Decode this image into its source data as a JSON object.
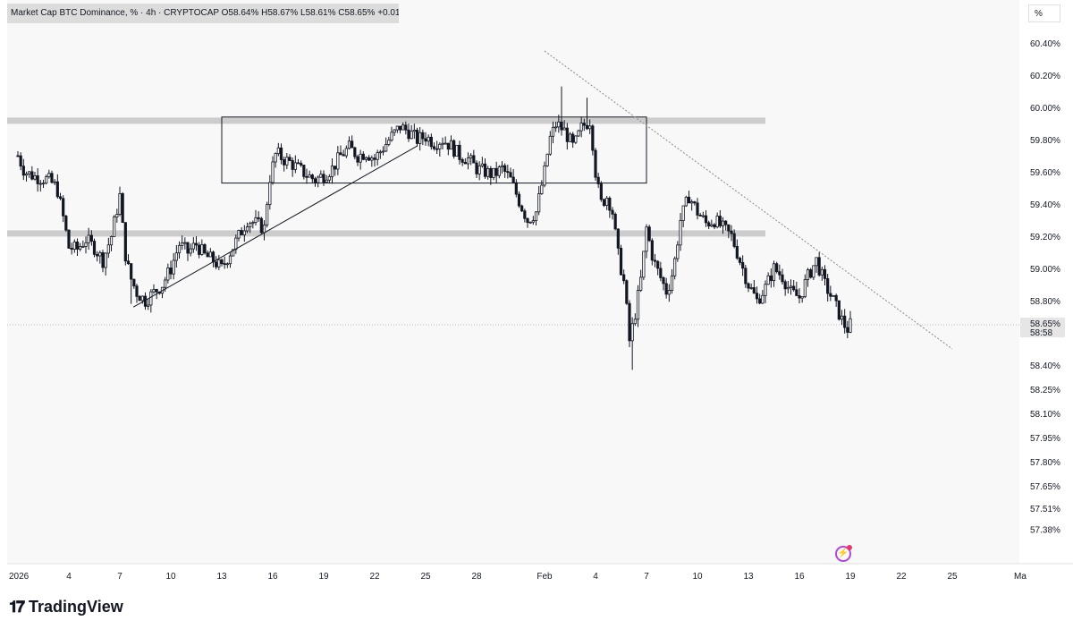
{
  "header": {
    "legend": "Market Cap BTC Dominance, % · 4h · CRYPTOCAP  O58.64%  H58.67%  L58.61%  C58.65%  +0.01 (+0.02%)",
    "unit": "%"
  },
  "price_scale": {
    "current_price": "58.65%",
    "countdown": "58:58"
  },
  "brand": {
    "name": "TradingView"
  },
  "colors": {
    "candle": "#131722",
    "zone": "#cccccc",
    "background": "#f8f8f8"
  },
  "chart_data": {
    "type": "candlestick",
    "title": "",
    "interval": "4h",
    "ylim": [
      57.3,
      60.55
    ],
    "y_ticks": [
      {
        "label": "60.40%",
        "value": 60.4
      },
      {
        "label": "60.20%",
        "value": 60.2
      },
      {
        "label": "60.00%",
        "value": 60.0
      },
      {
        "label": "59.80%",
        "value": 59.8
      },
      {
        "label": "59.60%",
        "value": 59.6
      },
      {
        "label": "59.40%",
        "value": 59.4
      },
      {
        "label": "59.20%",
        "value": 59.2
      },
      {
        "label": "59.00%",
        "value": 59.0
      },
      {
        "label": "58.80%",
        "value": 58.8
      },
      {
        "label": "58.40%",
        "value": 58.4
      },
      {
        "label": "58.25%",
        "value": 58.25
      },
      {
        "label": "58.10%",
        "value": 58.1
      },
      {
        "label": "57.95%",
        "value": 57.95
      },
      {
        "label": "57.80%",
        "value": 57.8
      },
      {
        "label": "57.65%",
        "value": 57.65
      },
      {
        "label": "57.51%",
        "value": 57.51
      },
      {
        "label": "57.38%",
        "value": 57.38
      }
    ],
    "x_ticks": [
      {
        "label": "2026",
        "day": 1
      },
      {
        "label": "4",
        "day": 4
      },
      {
        "label": "7",
        "day": 7
      },
      {
        "label": "10",
        "day": 10
      },
      {
        "label": "13",
        "day": 13
      },
      {
        "label": "16",
        "day": 16
      },
      {
        "label": "19",
        "day": 19
      },
      {
        "label": "22",
        "day": 22
      },
      {
        "label": "25",
        "day": 25
      },
      {
        "label": "28",
        "day": 28
      },
      {
        "label": "Feb",
        "day": 32
      },
      {
        "label": "4",
        "day": 35
      },
      {
        "label": "7",
        "day": 38
      },
      {
        "label": "10",
        "day": 41
      },
      {
        "label": "13",
        "day": 44
      },
      {
        "label": "16",
        "day": 47
      },
      {
        "label": "19",
        "day": 50
      },
      {
        "label": "22",
        "day": 53
      },
      {
        "label": "25",
        "day": 56
      },
      {
        "label": "Ma",
        "day": 60
      }
    ],
    "close_path": [
      [
        1.0,
        59.7
      ],
      [
        1.4,
        59.6
      ],
      [
        2.0,
        59.57
      ],
      [
        2.8,
        59.55
      ],
      [
        3.3,
        59.5
      ],
      [
        3.7,
        59.3
      ],
      [
        4.0,
        59.13
      ],
      [
        4.5,
        59.12
      ],
      [
        5.0,
        59.18
      ],
      [
        5.5,
        59.13
      ],
      [
        6.0,
        59.05
      ],
      [
        6.5,
        59.2
      ],
      [
        7.0,
        59.45
      ],
      [
        7.3,
        59.1
      ],
      [
        7.6,
        58.95
      ],
      [
        8.0,
        58.85
      ],
      [
        8.5,
        58.8
      ],
      [
        9.0,
        58.85
      ],
      [
        9.5,
        58.9
      ],
      [
        10.0,
        59.0
      ],
      [
        10.5,
        59.15
      ],
      [
        11.0,
        59.1
      ],
      [
        11.5,
        59.15
      ],
      [
        12.0,
        59.08
      ],
      [
        12.5,
        59.05
      ],
      [
        13.0,
        59.0
      ],
      [
        13.5,
        59.1
      ],
      [
        14.0,
        59.2
      ],
      [
        14.5,
        59.3
      ],
      [
        15.0,
        59.28
      ],
      [
        15.5,
        59.25
      ],
      [
        15.8,
        59.55
      ],
      [
        16.2,
        59.72
      ],
      [
        16.6,
        59.68
      ],
      [
        17.0,
        59.66
      ],
      [
        17.5,
        59.62
      ],
      [
        18.0,
        59.58
      ],
      [
        18.5,
        59.55
      ],
      [
        19.0,
        59.58
      ],
      [
        19.5,
        59.62
      ],
      [
        20.0,
        59.7
      ],
      [
        20.5,
        59.75
      ],
      [
        21.0,
        59.7
      ],
      [
        21.5,
        59.72
      ],
      [
        22.0,
        59.68
      ],
      [
        22.5,
        59.75
      ],
      [
        23.0,
        59.82
      ],
      [
        23.5,
        59.88
      ],
      [
        24.0,
        59.85
      ],
      [
        24.5,
        59.8
      ],
      [
        25.0,
        59.82
      ],
      [
        25.5,
        59.78
      ],
      [
        26.0,
        59.8
      ],
      [
        26.5,
        59.76
      ],
      [
        27.0,
        59.7
      ],
      [
        27.5,
        59.68
      ],
      [
        28.0,
        59.62
      ],
      [
        28.5,
        59.6
      ],
      [
        29.0,
        59.58
      ],
      [
        29.5,
        59.62
      ],
      [
        30.0,
        59.55
      ],
      [
        30.5,
        59.42
      ],
      [
        31.0,
        59.3
      ],
      [
        31.5,
        59.35
      ],
      [
        32.0,
        59.6
      ],
      [
        32.3,
        59.8
      ],
      [
        32.7,
        59.9
      ],
      [
        33.2,
        59.85
      ],
      [
        33.7,
        59.75
      ],
      [
        34.2,
        59.88
      ],
      [
        34.7,
        59.92
      ],
      [
        35.0,
        59.6
      ],
      [
        35.3,
        59.4
      ],
      [
        35.7,
        59.45
      ],
      [
        36.0,
        59.35
      ],
      [
        36.3,
        59.1
      ],
      [
        36.7,
        58.9
      ],
      [
        37.0,
        58.55
      ],
      [
        37.3,
        58.7
      ],
      [
        37.7,
        58.95
      ],
      [
        38.0,
        59.25
      ],
      [
        38.4,
        59.05
      ],
      [
        38.8,
        58.95
      ],
      [
        39.2,
        58.85
      ],
      [
        39.6,
        59.0
      ],
      [
        40.0,
        59.3
      ],
      [
        40.5,
        59.45
      ],
      [
        41.0,
        59.35
      ],
      [
        41.5,
        59.28
      ],
      [
        42.0,
        59.3
      ],
      [
        42.5,
        59.25
      ],
      [
        43.0,
        59.2
      ],
      [
        43.5,
        59.05
      ],
      [
        44.0,
        58.9
      ],
      [
        44.5,
        58.8
      ],
      [
        45.0,
        58.88
      ],
      [
        45.5,
        59.0
      ],
      [
        46.0,
        58.95
      ],
      [
        46.5,
        58.85
      ],
      [
        47.0,
        58.82
      ],
      [
        47.5,
        58.95
      ],
      [
        48.0,
        59.05
      ],
      [
        48.5,
        58.9
      ],
      [
        49.0,
        58.8
      ],
      [
        49.5,
        58.68
      ],
      [
        49.8,
        58.62
      ],
      [
        50.0,
        58.65
      ]
    ],
    "extremes": [
      {
        "day": 7.7,
        "low": 58.78
      },
      {
        "day": 33.0,
        "high": 60.13
      },
      {
        "day": 34.5,
        "high": 60.06
      },
      {
        "day": 37.2,
        "low": 58.37
      }
    ],
    "horizontal_zones": [
      {
        "value": 59.92,
        "from_day": 1,
        "to_day": 45
      },
      {
        "value": 59.22,
        "from_day": 1,
        "to_day": 45
      }
    ],
    "range_box": {
      "x0": 13.0,
      "x1": 38.0,
      "y0": 59.53,
      "y1": 59.94
    },
    "trendlines": [
      {
        "style": "solid",
        "points": [
          [
            7.8,
            58.76
          ],
          [
            24.5,
            59.76
          ]
        ]
      },
      {
        "style": "dotted",
        "points": [
          [
            32.0,
            60.35
          ],
          [
            56.0,
            58.5
          ]
        ]
      }
    ],
    "last_price": 58.65
  }
}
